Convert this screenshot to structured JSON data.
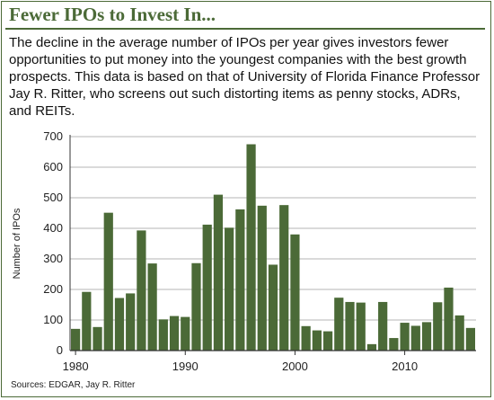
{
  "header": {
    "title": "Fewer IPOs to Invest In...",
    "description": "The decline in the average number of IPOs per year gives investors fewer opportunities to put money into the youngest companies with the best growth prospects. This data is based on that of University of Florida Finance Professor Jay R. Ritter, who screens out such distorting items as penny stocks, ADRs, and REITs."
  },
  "footer": {
    "sources": "Sources: EDGAR, Jay R. Ritter"
  },
  "chart_data": {
    "type": "bar",
    "title": "",
    "xlabel": "",
    "ylabel": "Number of IPOs",
    "ylim": [
      0,
      700
    ],
    "yticks": [
      0,
      100,
      200,
      300,
      400,
      500,
      600,
      700
    ],
    "xticks": [
      1980,
      1990,
      2000,
      2010
    ],
    "grid": "horizontal",
    "bar_color": "#4b6a37",
    "categories": [
      1980,
      1981,
      1982,
      1983,
      1984,
      1985,
      1986,
      1987,
      1988,
      1989,
      1990,
      1991,
      1992,
      1993,
      1994,
      1995,
      1996,
      1997,
      1998,
      1999,
      2000,
      2001,
      2002,
      2003,
      2004,
      2005,
      2006,
      2007,
      2008,
      2009,
      2010,
      2011,
      2012,
      2013,
      2014,
      2015,
      2016
    ],
    "values": [
      71,
      192,
      77,
      451,
      172,
      187,
      393,
      285,
      102,
      113,
      110,
      286,
      412,
      510,
      402,
      462,
      675,
      474,
      281,
      476,
      380,
      80,
      66,
      63,
      173,
      159,
      157,
      21,
      159,
      41,
      91,
      81,
      93,
      158,
      206,
      115,
      74
    ]
  }
}
